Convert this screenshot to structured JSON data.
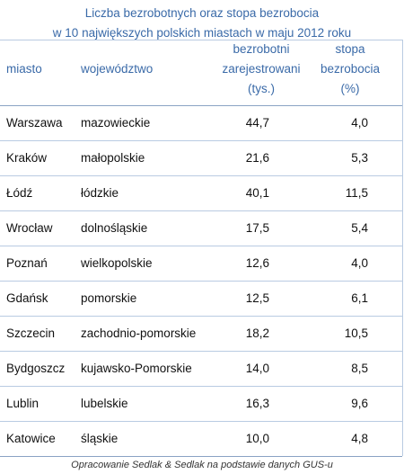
{
  "title": {
    "line1": "Liczba bezrobotnych oraz stopa bezrobocia",
    "line2": "w 10 największych polskich miastach w maju 2012 roku"
  },
  "headers": {
    "city": "miasto",
    "voivodeship": "województwo",
    "registered_line1": "bezrobotni",
    "registered_line2": "zarejestrowani",
    "registered_line3": "(tys.)",
    "rate_line1": "stopa",
    "rate_line2": "bezrobocia",
    "rate_line3": "(%)"
  },
  "rows": [
    {
      "city": "Warszawa",
      "voivodeship": "mazowieckie",
      "registered": "44,7",
      "rate": "4,0"
    },
    {
      "city": "Kraków",
      "voivodeship": "małopolskie",
      "registered": "21,6",
      "rate": "5,3"
    },
    {
      "city": "Łódź",
      "voivodeship": "łódzkie",
      "registered": "40,1",
      "rate": "11,5"
    },
    {
      "city": "Wrocław",
      "voivodeship": "dolnośląskie",
      "registered": "17,5",
      "rate": "5,4"
    },
    {
      "city": "Poznań",
      "voivodeship": "wielkopolskie",
      "registered": "12,6",
      "rate": "4,0"
    },
    {
      "city": "Gdańsk",
      "voivodeship": "pomorskie",
      "registered": "12,5",
      "rate": "6,1"
    },
    {
      "city": "Szczecin",
      "voivodeship": "zachodnio-pomorskie",
      "registered": "18,2",
      "rate": "10,5"
    },
    {
      "city": "Bydgoszcz",
      "voivodeship": "kujawsko-Pomorskie",
      "registered": "14,0",
      "rate": "8,5"
    },
    {
      "city": "Lublin",
      "voivodeship": "lubelskie",
      "registered": "16,3",
      "rate": "9,6"
    },
    {
      "city": "Katowice",
      "voivodeship": "śląskie",
      "registered": "10,0",
      "rate": "4,8"
    }
  ],
  "footer": "Opracowanie Sedlak & Sedlak na podstawie danych GUS-u",
  "colors": {
    "title": "#3a6aa8",
    "header": "#3a6aa8",
    "gridline": "#b9cbe2"
  },
  "chart_data": {
    "type": "table",
    "title": "Liczba bezrobotnych oraz stopa bezrobocia w 10 największych polskich miastach w maju 2012 roku",
    "columns": [
      "miasto",
      "województwo",
      "bezrobotni zarejestrowani (tys.)",
      "stopa bezrobocia (%)"
    ],
    "categories": [
      "Warszawa",
      "Kraków",
      "Łódź",
      "Wrocław",
      "Poznań",
      "Gdańsk",
      "Szczecin",
      "Bydgoszcz",
      "Lublin",
      "Katowice"
    ],
    "series": [
      {
        "name": "bezrobotni zarejestrowani (tys.)",
        "values": [
          44.7,
          21.6,
          40.1,
          17.5,
          12.6,
          12.5,
          18.2,
          14.0,
          16.3,
          10.0
        ]
      },
      {
        "name": "stopa bezrobocia (%)",
        "values": [
          4.0,
          5.3,
          11.5,
          5.4,
          4.0,
          6.1,
          10.5,
          8.5,
          9.6,
          4.8
        ]
      }
    ]
  }
}
